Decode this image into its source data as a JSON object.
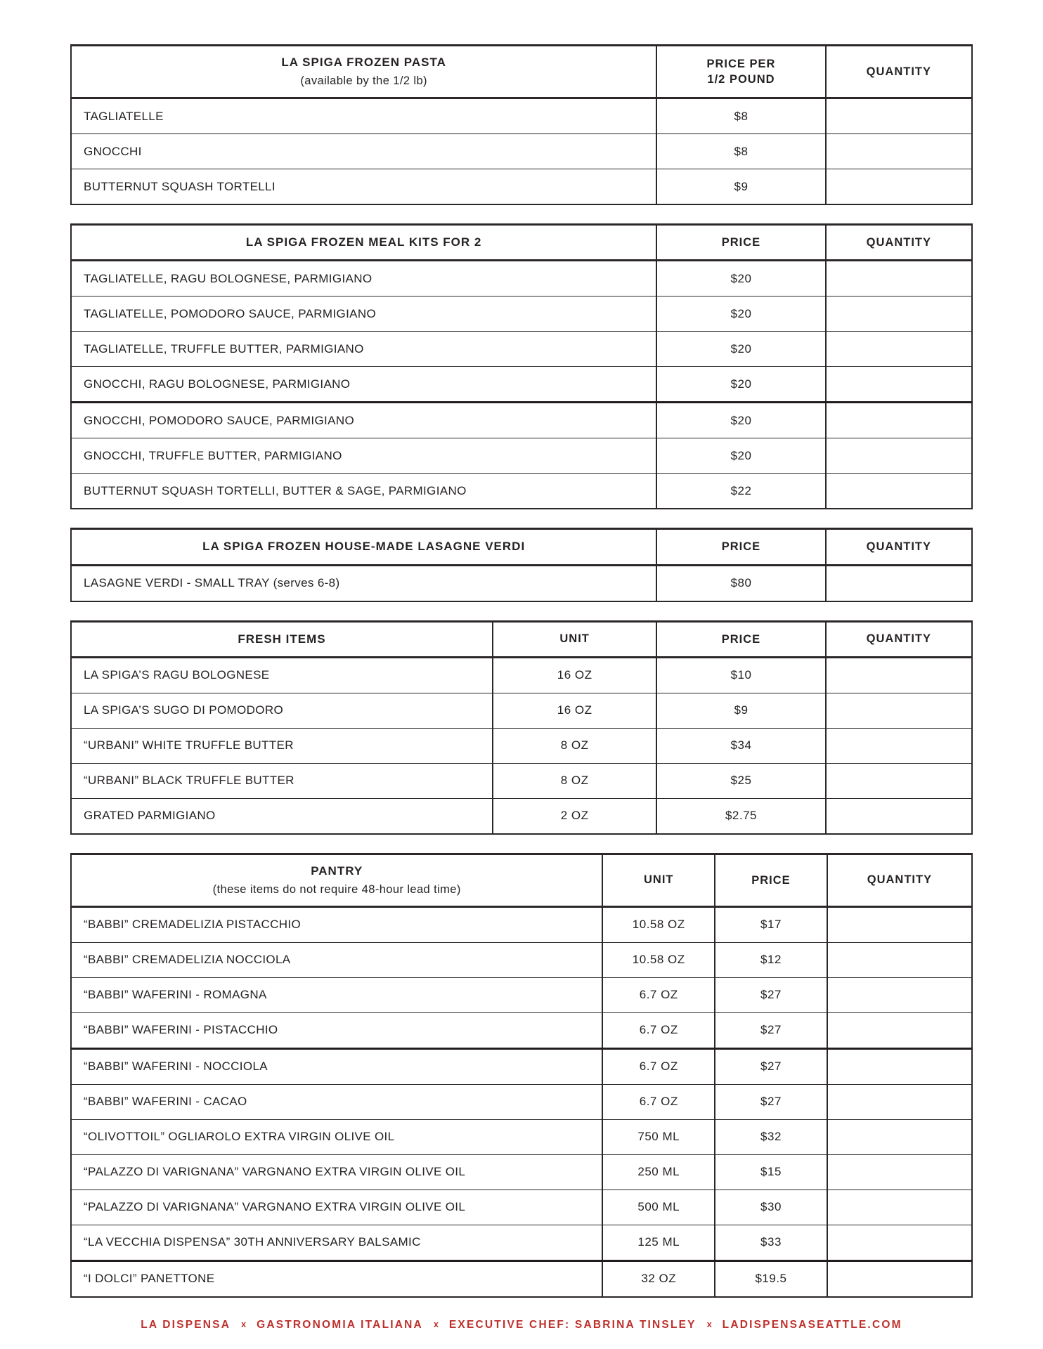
{
  "document": {
    "background": "#ffffff",
    "text_color": "#262223",
    "border_color": "#2b2728",
    "accent_red": "#be302c"
  },
  "tables": [
    {
      "name": "frozen-pasta",
      "title": "LA SPIGA FROZEN PASTA",
      "subtitle": "(available by the 1/2 lb)",
      "price_header_lines": [
        "PRICE PER",
        "1/2 POUND"
      ],
      "quantity_header": "QUANTITY",
      "rows": [
        {
          "item": "TAGLIATELLE",
          "price": "$8",
          "quantity": ""
        },
        {
          "item": "GNOCCHI",
          "price": "$8",
          "quantity": ""
        },
        {
          "item": "BUTTERNUT SQUASH TORTELLI",
          "price": "$9",
          "quantity": ""
        }
      ]
    },
    {
      "name": "frozen-meal-kits",
      "title": "LA SPIGA FROZEN MEAL KITS FOR 2",
      "price_header_lines": [
        "PRICE"
      ],
      "quantity_header": "QUANTITY",
      "rows": [
        {
          "item": "TAGLIATELLE, RAGU BOLOGNESE, PARMIGIANO",
          "price": "$20",
          "quantity": ""
        },
        {
          "item": "TAGLIATELLE, POMODORO SAUCE, PARMIGIANO",
          "price": "$20",
          "quantity": ""
        },
        {
          "item": "TAGLIATELLE, TRUFFLE BUTTER, PARMIGIANO",
          "price": "$20",
          "quantity": ""
        },
        {
          "item": "GNOCCHI, RAGU BOLOGNESE, PARMIGIANO",
          "price": "$20",
          "quantity": "",
          "divider_after": true
        },
        {
          "item": "GNOCCHI, POMODORO SAUCE, PARMIGIANO",
          "price": "$20",
          "quantity": ""
        },
        {
          "item": "GNOCCHI, TRUFFLE BUTTER, PARMIGIANO",
          "price": "$20",
          "quantity": ""
        },
        {
          "item": "BUTTERNUT SQUASH TORTELLI, BUTTER & SAGE, PARMIGIANO",
          "price": "$22",
          "quantity": ""
        }
      ]
    },
    {
      "name": "frozen-lasagne",
      "title": "LA SPIGA FROZEN HOUSE-MADE LASAGNE VERDI",
      "price_header_lines": [
        "PRICE"
      ],
      "quantity_header": "QUANTITY",
      "rows": [
        {
          "item": "LASAGNE VERDI - SMALL TRAY (serves 6-8)",
          "price": "$80",
          "quantity": ""
        }
      ]
    },
    {
      "name": "fresh-items",
      "title": "FRESH ITEMS",
      "unit_header": "UNIT",
      "price_header_lines": [
        "PRICE"
      ],
      "quantity_header": "QUANTITY",
      "rows": [
        {
          "item": "LA SPIGA’S RAGU BOLOGNESE",
          "unit": "16 OZ",
          "price": "$10",
          "quantity": ""
        },
        {
          "item": "LA SPIGA’S SUGO DI POMODORO",
          "unit": "16 OZ",
          "price": "$9",
          "quantity": ""
        },
        {
          "item": "“URBANI” WHITE TRUFFLE BUTTER",
          "unit": "8 OZ",
          "price": "$34",
          "quantity": ""
        },
        {
          "item": "“URBANI” BLACK TRUFFLE BUTTER",
          "unit": "8 OZ",
          "price": "$25",
          "quantity": ""
        },
        {
          "item": "GRATED PARMIGIANO",
          "unit": "2 OZ",
          "price": "$2.75",
          "quantity": ""
        }
      ]
    },
    {
      "name": "pantry",
      "title": "PANTRY",
      "subtitle": "(these items do not require 48-hour lead time)",
      "unit_header": "UNIT",
      "price_header_lines": [
        "PRICE"
      ],
      "quantity_header": "QUANTITY",
      "rows": [
        {
          "item": "“BABBI” CREMADELIZIA PISTACCHIO",
          "unit": "10.58 OZ",
          "price": "$17",
          "quantity": ""
        },
        {
          "item": "“BABBI” CREMADELIZIA NOCCIOLA",
          "unit": "10.58 OZ",
          "price": "$12",
          "quantity": ""
        },
        {
          "item": "“BABBI” WAFERINI - ROMAGNA",
          "unit": "6.7 OZ",
          "price": "$27",
          "quantity": ""
        },
        {
          "item": "“BABBI” WAFERINI - PISTACCHIO",
          "unit": "6.7 OZ",
          "price": "$27",
          "quantity": "",
          "divider_after": true
        },
        {
          "item": "“BABBI” WAFERINI - NOCCIOLA",
          "unit": "6.7 OZ",
          "price": "$27",
          "quantity": ""
        },
        {
          "item": "“BABBI” WAFERINI - CACAO",
          "unit": "6.7 OZ",
          "price": "$27",
          "quantity": ""
        },
        {
          "item": "“OLIVOTTOIL” OGLIAROLO EXTRA VIRGIN OLIVE OIL",
          "unit": "750 ML",
          "price": "$32",
          "quantity": ""
        },
        {
          "item": "“PALAZZO DI VARIGNANA” VARGNANO EXTRA VIRGIN OLIVE OIL",
          "unit": "250 ML",
          "price": "$15",
          "quantity": ""
        },
        {
          "item": "“PALAZZO DI VARIGNANA” VARGNANO EXTRA VIRGIN OLIVE OIL",
          "unit": "500 ML",
          "price": "$30",
          "quantity": ""
        },
        {
          "item": "“LA VECCHIA DISPENSA” 30TH ANNIVERSARY BALSAMIC",
          "unit": "125 ML",
          "price": "$33",
          "quantity": "",
          "divider_after": true
        },
        {
          "item": "“I DOLCI” PANETTONE",
          "unit": "32 OZ",
          "price": "$19.5",
          "quantity": ""
        }
      ]
    }
  ],
  "footer": {
    "segments": [
      "LA DISPENSA",
      "GASTRONOMIA ITALIANA",
      "EXECUTIVE CHEF: SABRINA TINSLEY",
      "LADISPENSASEATTLE.COM"
    ],
    "separator": "x",
    "color": "#be302c"
  }
}
